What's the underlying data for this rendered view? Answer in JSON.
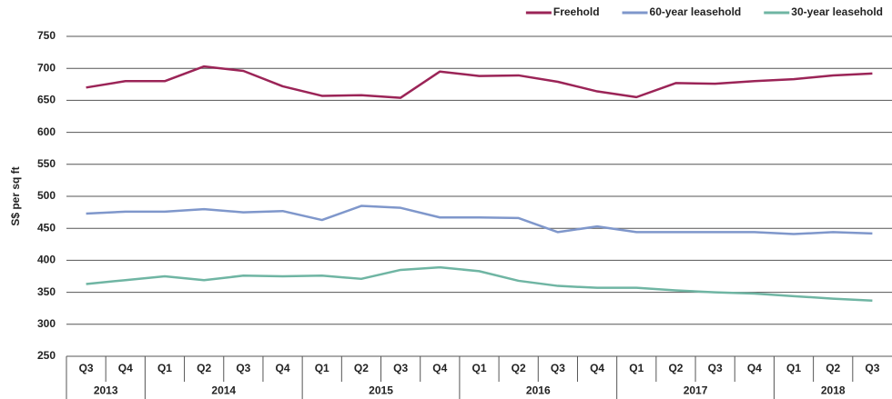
{
  "chart_data": {
    "type": "line",
    "y_label": "S$ per sq ft",
    "categories": [
      "Q3",
      "Q4",
      "Q1",
      "Q2",
      "Q3",
      "Q4",
      "Q1",
      "Q2",
      "Q3",
      "Q4",
      "Q1",
      "Q2",
      "Q3",
      "Q4",
      "Q1",
      "Q2",
      "Q3",
      "Q4",
      "Q1",
      "Q2",
      "Q3"
    ],
    "category_years": [
      "2013",
      "2013",
      "2014",
      "2014",
      "2014",
      "2014",
      "2015",
      "2015",
      "2015",
      "2015",
      "2016",
      "2016",
      "2016",
      "2016",
      "2017",
      "2017",
      "2017",
      "2017",
      "2018",
      "2018",
      "2018"
    ],
    "series": [
      {
        "name": "Freehold",
        "color": "#9b2457",
        "values": [
          670,
          680,
          680,
          703,
          696,
          672,
          657,
          658,
          654,
          695,
          688,
          689,
          679,
          664,
          655,
          677,
          676,
          680,
          683,
          689,
          692
        ]
      },
      {
        "name": "60-year leasehold",
        "color": "#7f97cb",
        "values": [
          473,
          476,
          476,
          480,
          475,
          477,
          463,
          485,
          482,
          467,
          467,
          466,
          444,
          453,
          444,
          444,
          444,
          444,
          441,
          444,
          442
        ]
      },
      {
        "name": "30-year leasehold",
        "color": "#6fb5a3",
        "values": [
          363,
          369,
          375,
          369,
          376,
          375,
          376,
          371,
          385,
          389,
          383,
          368,
          360,
          357,
          357,
          353,
          350,
          348,
          344,
          340,
          337
        ]
      }
    ],
    "ylim": [
      250,
      750
    ],
    "yticks": [
      250,
      300,
      350,
      400,
      450,
      500,
      550,
      600,
      650,
      700,
      750
    ],
    "grid": true,
    "legend": "top-right"
  }
}
